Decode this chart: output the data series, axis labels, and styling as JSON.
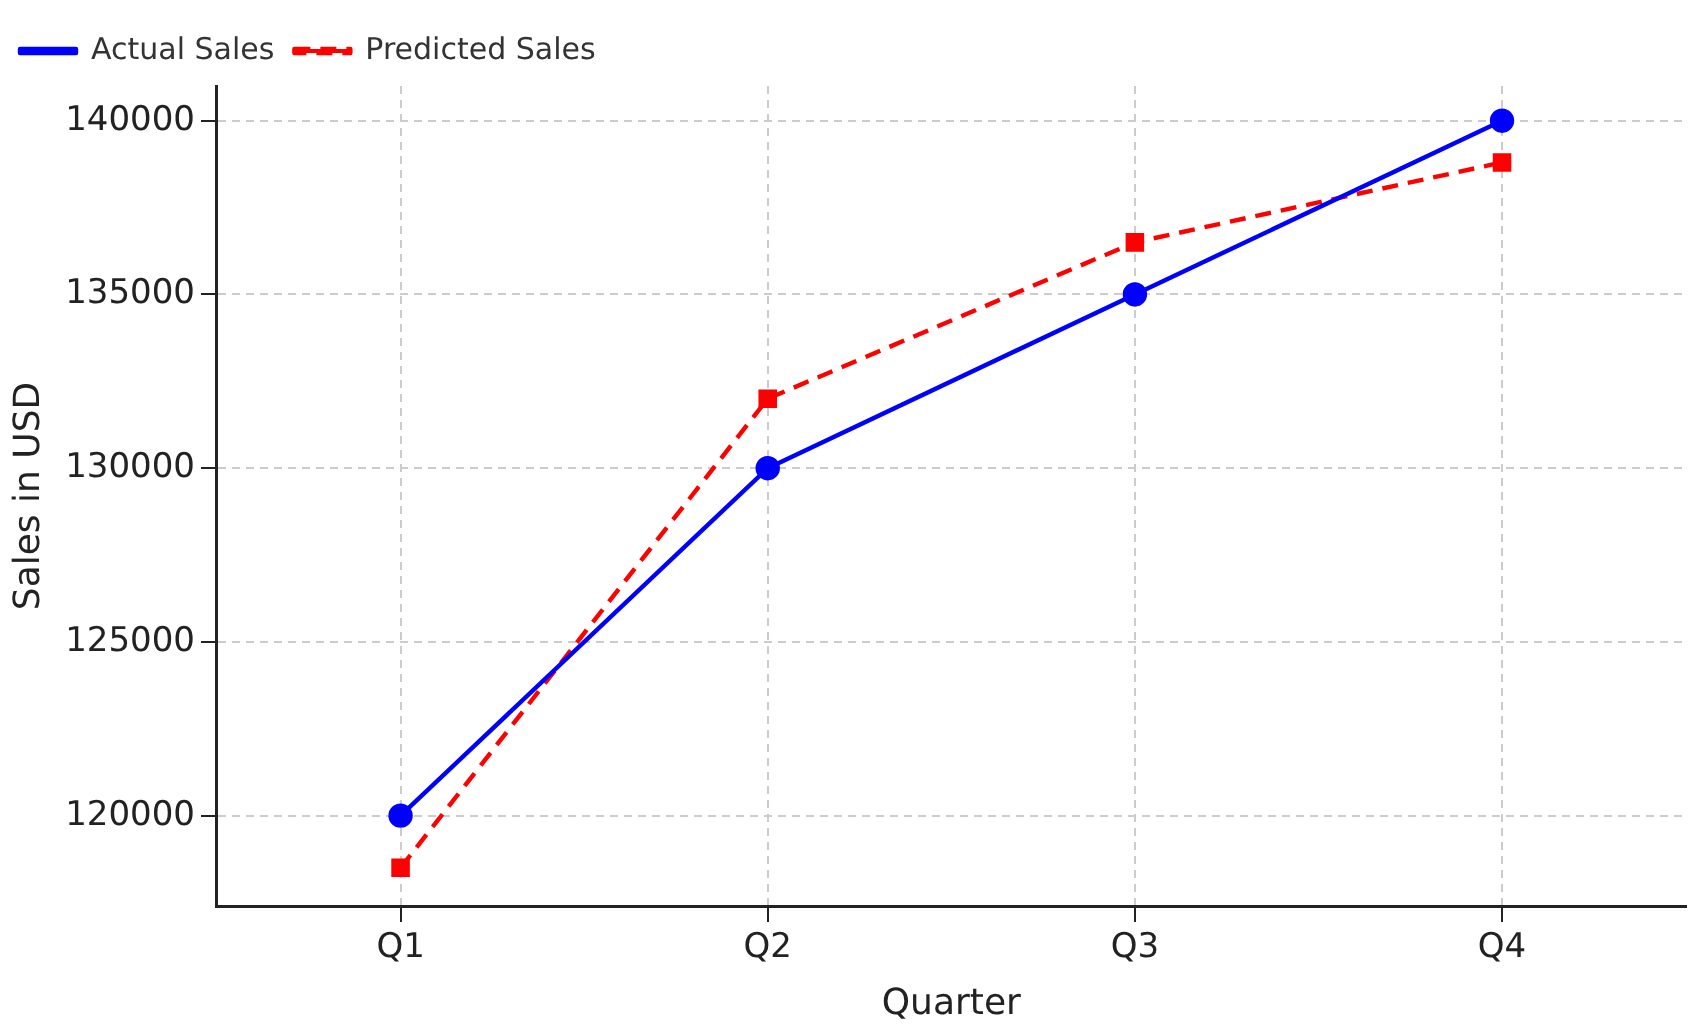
{
  "chart_data": {
    "type": "line",
    "xlabel": "Quarter",
    "ylabel": "Sales in USD",
    "categories": [
      "Q1",
      "Q2",
      "Q3",
      "Q4"
    ],
    "series": [
      {
        "name": "Actual Sales",
        "color": "#0000ff",
        "values": [
          120000,
          130000,
          135000,
          140000
        ],
        "marker": "circle",
        "line_style": "solid"
      },
      {
        "name": "Predicted Sales",
        "color": "#ff0000",
        "values": [
          118500,
          132000,
          136500,
          138800
        ],
        "marker": "square",
        "line_style": "dashed"
      }
    ],
    "ylim": [
      117400,
      141000
    ],
    "yticks": [
      120000,
      125000,
      130000,
      135000,
      140000
    ],
    "grid": true,
    "legend": "top left"
  }
}
